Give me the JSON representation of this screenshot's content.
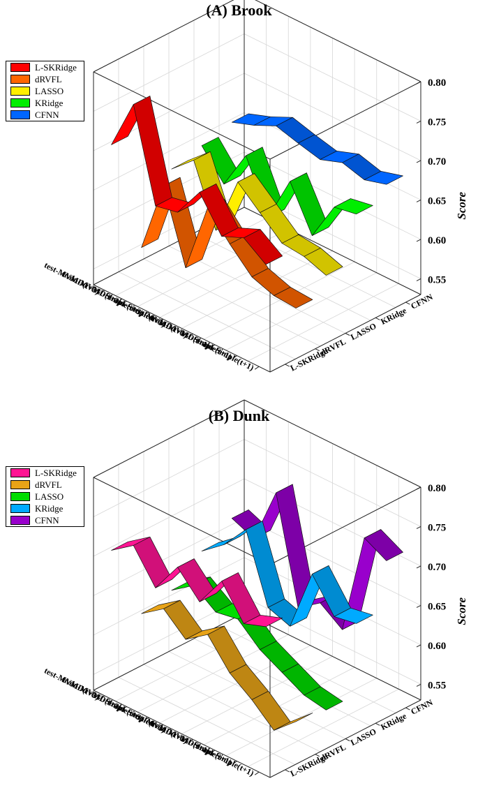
{
  "chart_data": [
    {
      "type": "line",
      "title": "(A) Brook",
      "zlabel": "Score",
      "zlim": [
        0.53,
        0.8
      ],
      "zticks": [
        "0.55",
        "0.60",
        "0.65",
        "0.70",
        "0.75",
        "0.80"
      ],
      "x_categories": [
        "test-MVMD(t+3)",
        "train-MVMD(t+3)",
        "test-Simple(t+3)",
        "train-Simple(t+3)",
        "test-MVMD(t+1)",
        "train-MVMD(t+1)",
        "test-Simple(t+1)",
        "train-Simple(t+1)"
      ],
      "y_categories": [
        "L-SKRidge",
        "dRVFL",
        "LASSO",
        "KRidge",
        "CFNN"
      ],
      "grid": true,
      "legend_position": "top-left",
      "series": [
        {
          "name": "L-SKRidge",
          "color": "#ff0000",
          "values": [
            0.71,
            0.775,
            0.66,
            0.666,
            0.705,
            0.663,
            0.675,
            0.655
          ]
        },
        {
          "name": "dRVFL",
          "color": "#ff6600",
          "values": [
            0.56,
            0.652,
            0.562,
            0.652,
            0.62,
            0.592,
            0.582,
            0.58
          ]
        },
        {
          "name": "LASSO",
          "color": "#ffee00",
          "values": [
            0.64,
            0.665,
            0.59,
            0.665,
            0.64,
            0.615,
            0.612,
            0.602
          ]
        },
        {
          "name": "KRidge",
          "color": "#00ee00",
          "values": [
            0.65,
            0.615,
            0.665,
            0.6,
            0.66,
            0.605,
            0.655,
            0.66
          ]
        },
        {
          "name": "CFNN",
          "color": "#0066ff",
          "values": [
            0.66,
            0.67,
            0.683,
            0.675,
            0.668,
            0.678,
            0.67,
            0.678
          ]
        }
      ]
    },
    {
      "type": "line",
      "title": "(B) Dunk",
      "zlabel": "Score",
      "zlim": [
        0.53,
        0.8
      ],
      "zticks": [
        "0.55",
        "0.60",
        "0.65",
        "0.70",
        "0.75",
        "0.80"
      ],
      "x_categories": [
        "test-MVMD(t+3)",
        "train-MVMD(t+3)",
        "test-Simple(t+3)",
        "train-Simple(t+3)",
        "test-MVMD(t+1)",
        "train-MVMD(t+1)",
        "test-Simple(t+1)",
        "train-Simple(t+1)"
      ],
      "y_categories": [
        "L-SKRidge",
        "dRVFL",
        "LASSO",
        "KRidge",
        "CFNN"
      ],
      "grid": true,
      "legend_position": "top-left",
      "series": [
        {
          "name": "L-SKRidge",
          "color": "#ff1493",
          "values": [
            0.71,
            0.73,
            0.69,
            0.73,
            0.7,
            0.74,
            0.7,
            0.71
          ]
        },
        {
          "name": "dRVFL",
          "color": "#e8a317",
          "values": [
            0.61,
            0.63,
            0.605,
            0.625,
            0.59,
            0.57,
            0.545,
            0.57
          ]
        },
        {
          "name": "LASSO",
          "color": "#00dd00",
          "values": [
            0.62,
            0.64,
            0.62,
            0.625,
            0.6,
            0.585,
            0.57,
            0.565
          ]
        },
        {
          "name": "KRidge",
          "color": "#00aaff",
          "values": [
            0.65,
            0.672,
            0.705,
            0.62,
            0.61,
            0.69,
            0.65,
            0.655
          ]
        },
        {
          "name": "CFNN",
          "color": "#9900cc",
          "values": [
            0.672,
            0.66,
            0.732,
            0.6,
            0.62,
            0.6,
            0.73,
            0.715
          ]
        }
      ]
    }
  ]
}
